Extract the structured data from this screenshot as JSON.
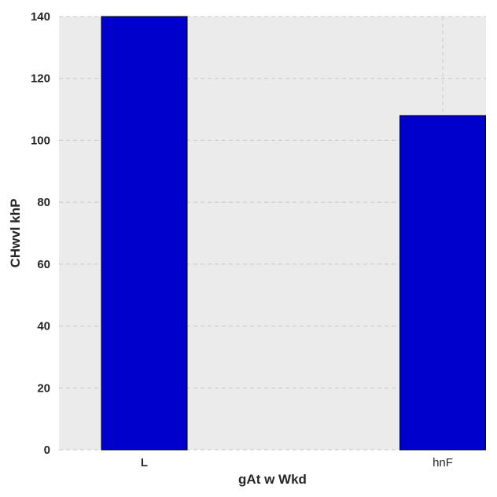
{
  "chart_data": {
    "type": "bar",
    "categories": [
      "L",
      "hnF"
    ],
    "category_bold": [
      true,
      false
    ],
    "values": [
      140,
      108
    ],
    "xlabel": "gAt w Wkd",
    "ylabel": "CHwvl khP",
    "ylim": [
      0,
      140
    ],
    "yticks": [
      0,
      20,
      40,
      60,
      80,
      100,
      120,
      140
    ],
    "grid": true,
    "colors": {
      "bar": "#0000cc",
      "bar_edge": "#000000",
      "plot_bg": "#ebebeb",
      "grid": "#c8c8c8"
    }
  }
}
